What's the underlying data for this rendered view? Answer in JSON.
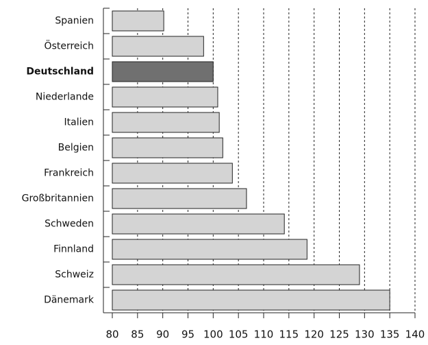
{
  "chart_data": {
    "type": "bar",
    "orientation": "horizontal",
    "categories": [
      "Spanien",
      "Österreich",
      "Deutschland",
      "Niederlande",
      "Italien",
      "Belgien",
      "Frankreich",
      "Großbritannien",
      "Schweden",
      "Finnland",
      "Schweiz",
      "Dänemark"
    ],
    "values": [
      90.2,
      98.1,
      100,
      100.9,
      101.2,
      101.9,
      103.8,
      106.6,
      114.1,
      118.6,
      129.0,
      135.0
    ],
    "color": "#d4d4d4",
    "highlight_color": "#707070",
    "highlight_index": 2,
    "xlim": [
      80,
      140
    ],
    "xticks": [
      80,
      85,
      90,
      95,
      100,
      105,
      110,
      115,
      120,
      125,
      130,
      135,
      140
    ],
    "grid": true
  }
}
